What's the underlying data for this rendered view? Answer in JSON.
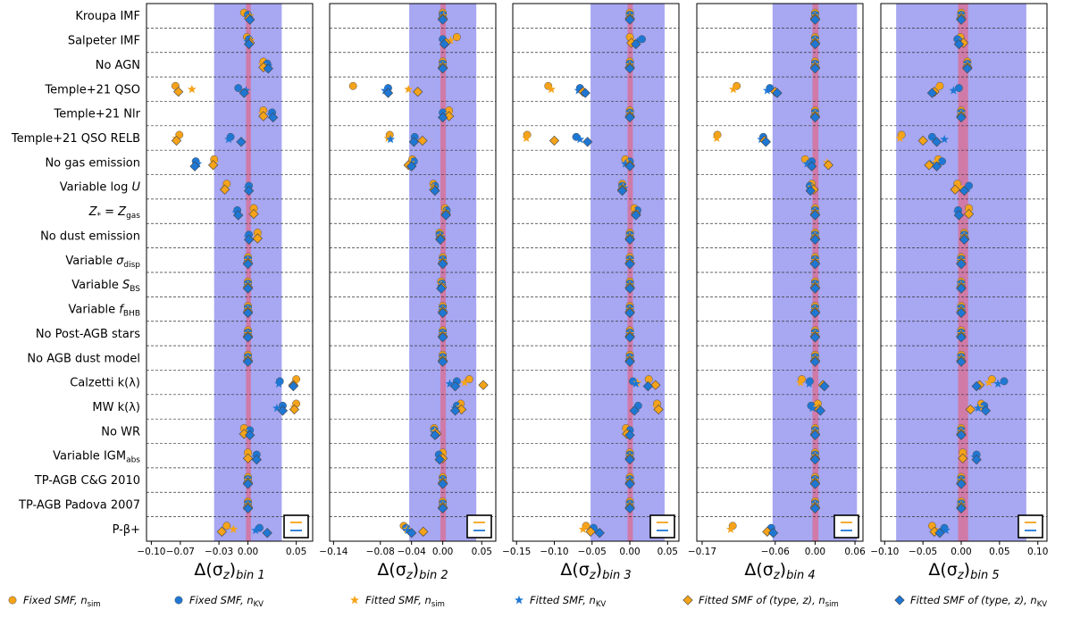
{
  "chart_data": {
    "type": "scatter",
    "rows": [
      "Kroupa IMF",
      "Salpeter IMF",
      "No AGN",
      "Temple+21 QSO",
      "Temple+21 Nlr",
      "Temple+21 QSO RELB",
      "No gas emission",
      "Variable log U",
      "Z* = Zgas",
      "No dust emission",
      "Variable σdisp",
      "Variable SBS",
      "Variable fBHB",
      "No Post-AGB stars",
      "No AGB dust model",
      "Calzetti k(λ)",
      "MW k(λ)",
      "No WR",
      "Variable IGMabs",
      "TP-AGB C&G 2010",
      "TP-AGB Padova 2007",
      "P-β+"
    ],
    "legend": [
      {
        "key": "fixed_sim",
        "label": "Fixed SMF, n_sim",
        "marker": "circle",
        "color": "#f5a31a"
      },
      {
        "key": "fixed_kv",
        "label": "Fixed SMF, n_KV",
        "marker": "circle",
        "color": "#1f77d4"
      },
      {
        "key": "fitted_sim",
        "label": "Fitted SMF, n_sim",
        "marker": "star",
        "color": "#f5a31a"
      },
      {
        "key": "fitted_kv",
        "label": "Fitted SMF, n_KV",
        "marker": "star",
        "color": "#1f77d4"
      },
      {
        "key": "type_sim",
        "label": "Fitted SMF of (type, z), n_sim",
        "marker": "diamond",
        "color": "#f5a31a"
      },
      {
        "key": "type_kv",
        "label": "Fitted SMF of (type, z), n_KV",
        "marker": "diamond",
        "color": "#1f77d4"
      }
    ],
    "panels": [
      {
        "xlabel": "Δ(σz)bin 1",
        "xlim": [
          -0.105,
          0.067
        ],
        "ticks": [
          -0.1,
          -0.07,
          -0.03,
          0.0,
          0.05
        ],
        "tick_labels": [
          "−0.10",
          "−0.07",
          "−0.03",
          "0.00",
          "0.05"
        ],
        "band": [
          -0.035,
          0.035
        ],
        "redband": [
          -0.002,
          0.003
        ],
        "points": [
          [
            -0.004,
            0.0,
            0.002,
            0.001,
            0.001,
            0.002
          ],
          [
            -0.001,
            0.001,
            0.003,
            0.0,
            0.002,
            0.001
          ],
          [
            0.016,
            0.02,
            0.015,
            0.021,
            0.016,
            0.021
          ],
          [
            -0.075,
            -0.01,
            -0.058,
            -0.002,
            -0.072,
            -0.004
          ],
          [
            0.016,
            0.025,
            0.015,
            0.024,
            0.016,
            0.026
          ],
          [
            -0.071,
            -0.018,
            -0.074,
            -0.02,
            -0.074,
            -0.007
          ],
          [
            -0.035,
            -0.054,
            -0.035,
            -0.052,
            -0.036,
            -0.055
          ],
          [
            -0.022,
            0.001,
            -0.023,
            0.0,
            -0.024,
            0.001
          ],
          [
            0.006,
            -0.011,
            0.006,
            -0.012,
            0.006,
            -0.01
          ],
          [
            0.01,
            0.001,
            0.01,
            0.0,
            0.01,
            0.001
          ],
          [
            0.0,
            0.0,
            0.0,
            0.0,
            0.0,
            0.0
          ],
          [
            0.0,
            0.0,
            0.0,
            0.0,
            0.0,
            0.0
          ],
          [
            0.0,
            0.0,
            0.0,
            0.0,
            0.0,
            0.0
          ],
          [
            0.0,
            0.0,
            0.0,
            0.0,
            0.0,
            0.0
          ],
          [
            0.0,
            0.0,
            0.0,
            0.0,
            0.0,
            0.0
          ],
          [
            0.05,
            0.033,
            0.049,
            0.032,
            0.047,
            0.047
          ],
          [
            0.05,
            0.036,
            0.048,
            0.03,
            0.048,
            0.036
          ],
          [
            -0.004,
            0.002,
            -0.004,
            0.002,
            -0.004,
            0.002
          ],
          [
            0.0,
            0.009,
            0.0,
            0.008,
            0.0,
            0.009
          ],
          [
            0.0,
            0.0,
            0.0,
            0.0,
            0.0,
            0.0
          ],
          [
            0.0,
            0.0,
            0.0,
            0.0,
            0.0,
            0.0
          ],
          [
            -0.022,
            0.012,
            -0.015,
            0.008,
            -0.027,
            0.02
          ]
        ]
      },
      {
        "xlabel": "Δ(σz)bin 2",
        "xlim": [
          -0.145,
          0.068
        ],
        "ticks": [
          -0.14,
          -0.08,
          -0.04,
          0.0,
          0.05
        ],
        "tick_labels": [
          "−0.14",
          "−0.08",
          "−0.04",
          "0.00",
          "0.05"
        ],
        "band": [
          -0.043,
          0.043
        ],
        "redband": [
          -0.003,
          0.004
        ],
        "points": [
          [
            0.0,
            0.0,
            0.001,
            0.0,
            0.0,
            0.0
          ],
          [
            0.018,
            0.0,
            0.01,
            0.002,
            0.004,
            0.002
          ],
          [
            0.0,
            0.0,
            0.0,
            0.0,
            0.0,
            0.0
          ],
          [
            -0.115,
            -0.07,
            -0.044,
            -0.074,
            -0.032,
            -0.07
          ],
          [
            0.008,
            0.0,
            0.008,
            0.0,
            0.008,
            0.0
          ],
          [
            -0.068,
            -0.036,
            -0.07,
            -0.067,
            -0.026,
            -0.037
          ],
          [
            -0.039,
            -0.037,
            -0.041,
            -0.04,
            -0.044,
            -0.04
          ],
          [
            -0.012,
            -0.01,
            -0.012,
            -0.01,
            -0.011,
            -0.01
          ],
          [
            0.003,
            0.005,
            0.003,
            0.004,
            0.004,
            0.004
          ],
          [
            -0.004,
            -0.004,
            -0.003,
            -0.002,
            -0.003,
            -0.003
          ],
          [
            0.0,
            0.0,
            0.0,
            0.0,
            0.0,
            0.0
          ],
          [
            -0.002,
            -0.001,
            -0.002,
            -0.002,
            -0.001,
            -0.002
          ],
          [
            0.0,
            0.0,
            0.0,
            0.0,
            0.0,
            0.0
          ],
          [
            0.0,
            0.0,
            0.0,
            0.0,
            0.0,
            0.0
          ],
          [
            0.0,
            0.0,
            0.0,
            0.0,
            0.0,
            0.0
          ],
          [
            0.034,
            0.018,
            0.028,
            0.009,
            0.052,
            0.016
          ],
          [
            0.023,
            0.018,
            0.022,
            0.016,
            0.024,
            0.016
          ],
          [
            -0.011,
            -0.011,
            -0.01,
            -0.008,
            -0.008,
            -0.01
          ],
          [
            0.0,
            -0.005,
            0.0,
            -0.005,
            0.0,
            -0.004
          ],
          [
            0.0,
            0.0,
            0.0,
            0.0,
            0.0,
            0.0
          ],
          [
            0.0,
            0.0,
            0.0,
            0.0,
            0.0,
            0.0
          ],
          [
            -0.05,
            -0.047,
            -0.046,
            -0.045,
            -0.025,
            -0.04
          ]
        ]
      },
      {
        "xlabel": "Δ(σz)bin 3",
        "xlim": [
          -0.155,
          0.065
        ],
        "ticks": [
          -0.15,
          -0.1,
          -0.05,
          0.0,
          0.05
        ],
        "tick_labels": [
          "−0.15",
          "−0.10",
          "−0.05",
          "0.00",
          "0.05"
        ],
        "band": [
          -0.052,
          0.046
        ],
        "redband": [
          -0.003,
          0.004
        ],
        "points": [
          [
            0.0,
            0.0,
            0.0,
            0.0,
            0.0,
            0.0
          ],
          [
            0.0,
            0.016,
            0.002,
            0.01,
            0.002,
            0.008
          ],
          [
            0.0,
            0.0,
            0.0,
            0.0,
            0.0,
            0.0
          ],
          [
            -0.108,
            -0.066,
            -0.104,
            -0.068,
            -0.062,
            -0.059
          ],
          [
            0.0,
            0.0,
            0.0,
            0.0,
            0.0,
            0.0
          ],
          [
            -0.136,
            -0.071,
            -0.137,
            -0.066,
            -0.1,
            -0.056
          ],
          [
            -0.006,
            0.0,
            -0.003,
            -0.006,
            0.0,
            0.0
          ],
          [
            -0.01,
            -0.01,
            -0.009,
            -0.008,
            -0.01,
            -0.01
          ],
          [
            0.006,
            0.01,
            0.006,
            0.008,
            0.008,
            0.008
          ],
          [
            0.0,
            0.0,
            0.0,
            0.0,
            0.0,
            0.0
          ],
          [
            0.0,
            0.0,
            0.0,
            0.0,
            0.0,
            0.0
          ],
          [
            0.0,
            0.0,
            0.0,
            0.0,
            0.0,
            0.0
          ],
          [
            0.0,
            0.0,
            0.0,
            0.0,
            0.0,
            0.0
          ],
          [
            0.0,
            0.0,
            0.0,
            0.0,
            0.0,
            0.0
          ],
          [
            0.0,
            0.0,
            0.0,
            0.0,
            0.0,
            0.0
          ],
          [
            0.025,
            0.004,
            0.01,
            0.008,
            0.034,
            0.024
          ],
          [
            0.036,
            0.011,
            0.035,
            0.009,
            0.038,
            0.006
          ],
          [
            -0.005,
            0.0,
            -0.005,
            0.0,
            -0.004,
            0.0
          ],
          [
            0.0,
            0.0,
            0.0,
            0.0,
            0.0,
            0.0
          ],
          [
            0.0,
            0.0,
            0.0,
            0.0,
            0.0,
            0.0
          ],
          [
            0.0,
            0.0,
            0.0,
            0.0,
            0.0,
            0.0
          ],
          [
            -0.058,
            -0.048,
            -0.062,
            -0.046,
            -0.052,
            -0.04
          ]
        ]
      },
      {
        "xlabel": "Δ(σz)bin 4",
        "xlim": [
          -0.178,
          0.072
        ],
        "ticks": [
          -0.17,
          -0.06,
          0.0,
          0.06
        ],
        "tick_labels": [
          "−0.17",
          "−0.06",
          "0.00",
          "0.06"
        ],
        "band": [
          -0.064,
          0.063
        ],
        "redband": [
          -0.004,
          0.005
        ],
        "points": [
          [
            0.0,
            0.0,
            0.0,
            0.0,
            0.0,
            0.0
          ],
          [
            0.0,
            0.0,
            0.0,
            0.0,
            0.0,
            0.0
          ],
          [
            0.0,
            0.0,
            0.0,
            0.0,
            0.0,
            0.0
          ],
          [
            -0.118,
            -0.068,
            -0.123,
            -0.072,
            -0.06,
            -0.057
          ],
          [
            0.0,
            0.0,
            0.0,
            0.0,
            0.0,
            0.0
          ],
          [
            -0.147,
            -0.078,
            -0.148,
            -0.081,
            -0.076,
            -0.074
          ],
          [
            -0.015,
            -0.005,
            0.018,
            -0.012,
            0.02,
            -0.005
          ],
          [
            -0.005,
            -0.008,
            -0.005,
            -0.006,
            -0.002,
            -0.007
          ],
          [
            0.0,
            0.0,
            0.0,
            0.0,
            0.0,
            0.0
          ],
          [
            0.0,
            0.0,
            0.0,
            0.0,
            0.0,
            0.0
          ],
          [
            0.0,
            0.0,
            0.0,
            0.0,
            0.0,
            0.0
          ],
          [
            0.0,
            0.0,
            0.0,
            0.0,
            0.0,
            0.0
          ],
          [
            0.0,
            0.0,
            0.0,
            0.0,
            0.0,
            0.0
          ],
          [
            0.0,
            0.0,
            0.0,
            0.0,
            0.0,
            0.0
          ],
          [
            0.0,
            0.0,
            0.0,
            0.0,
            0.0,
            0.0
          ],
          [
            -0.02,
            -0.008,
            -0.022,
            -0.009,
            0.012,
            0.014
          ],
          [
            0.004,
            -0.006,
            0.002,
            -0.004,
            0.006,
            0.008
          ],
          [
            0.0,
            0.0,
            0.0,
            0.0,
            0.0,
            0.0
          ],
          [
            0.0,
            0.0,
            0.0,
            0.0,
            0.0,
            0.0
          ],
          [
            0.0,
            0.0,
            0.0,
            0.0,
            0.0,
            0.0
          ],
          [
            0.0,
            0.0,
            0.0,
            0.0,
            0.0,
            0.0
          ],
          [
            -0.124,
            -0.066,
            -0.127,
            -0.066,
            -0.072,
            -0.063
          ]
        ]
      },
      {
        "xlabel": "Δ(σz)bin 5",
        "xlim": [
          -0.105,
          0.112
        ],
        "ticks": [
          -0.1,
          -0.05,
          0.0,
          0.05,
          0.1
        ],
        "tick_labels": [
          "−0.10",
          "−0.05",
          "0.00",
          "0.05",
          "0.10"
        ],
        "band": [
          -0.085,
          0.085
        ],
        "redband": [
          -0.004,
          0.009
        ],
        "points": [
          [
            0.0,
            0.0,
            0.0,
            0.0,
            0.0,
            0.0
          ],
          [
            -0.001,
            -0.005,
            0.002,
            0.0,
            0.003,
            -0.003
          ],
          [
            0.008,
            0.008,
            0.008,
            0.008,
            0.008,
            0.008
          ],
          [
            -0.028,
            -0.003,
            -0.032,
            -0.01,
            -0.035,
            -0.038
          ],
          [
            0.0,
            0.0,
            0.0,
            0.0,
            0.0,
            0.0
          ],
          [
            -0.078,
            -0.038,
            -0.08,
            -0.022,
            -0.05,
            -0.032
          ],
          [
            -0.03,
            -0.025,
            -0.034,
            -0.04,
            -0.042,
            -0.032
          ],
          [
            -0.005,
            0.01,
            -0.002,
            0.008,
            -0.008,
            0.004
          ],
          [
            0.01,
            -0.004,
            0.01,
            -0.005,
            0.01,
            -0.003
          ],
          [
            0.004,
            0.004,
            0.004,
            0.004,
            0.004,
            0.004
          ],
          [
            0.0,
            0.0,
            0.0,
            0.0,
            0.0,
            0.0
          ],
          [
            0.0,
            0.0,
            0.0,
            0.0,
            0.0,
            0.0
          ],
          [
            0.0,
            0.0,
            0.0,
            0.0,
            0.0,
            0.0
          ],
          [
            0.0,
            0.0,
            0.0,
            0.0,
            0.0,
            0.0
          ],
          [
            0.0,
            0.0,
            0.0,
            0.0,
            0.0,
            0.0
          ],
          [
            0.04,
            0.056,
            0.036,
            0.048,
            0.024,
            0.02
          ],
          [
            0.026,
            0.03,
            0.024,
            0.022,
            0.012,
            0.032
          ],
          [
            0.0,
            0.0,
            0.0,
            0.0,
            0.0,
            0.0
          ],
          [
            0.002,
            0.02,
            0.002,
            0.018,
            0.002,
            0.02
          ],
          [
            0.0,
            0.0,
            0.0,
            0.0,
            0.0,
            0.0
          ],
          [
            0.0,
            0.0,
            0.0,
            0.0,
            0.0,
            0.0
          ],
          [
            -0.038,
            -0.022,
            -0.035,
            -0.02,
            -0.035,
            -0.028
          ]
        ]
      }
    ]
  }
}
